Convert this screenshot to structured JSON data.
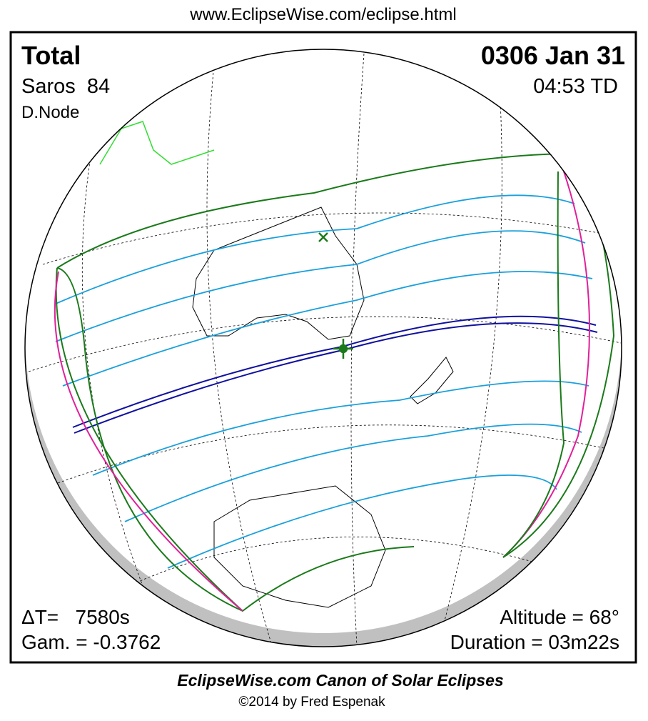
{
  "header": {
    "url": "www.EclipseWise.com/eclipse.html"
  },
  "panel": {
    "type": "Total",
    "saros": "Saros  84",
    "node": "D.Node",
    "date": "0306 Jan 31",
    "time": "04:53 TD",
    "delta_t": "ΔT=   7580s",
    "gamma": "Gam. = -0.3762",
    "altitude": "Altitude = 68°",
    "duration": "Duration = 03m22s"
  },
  "footer": {
    "title": "EclipseWise.com Canon of Solar Eclipses",
    "credit": "©2014 by Fred Espenak"
  }
}
